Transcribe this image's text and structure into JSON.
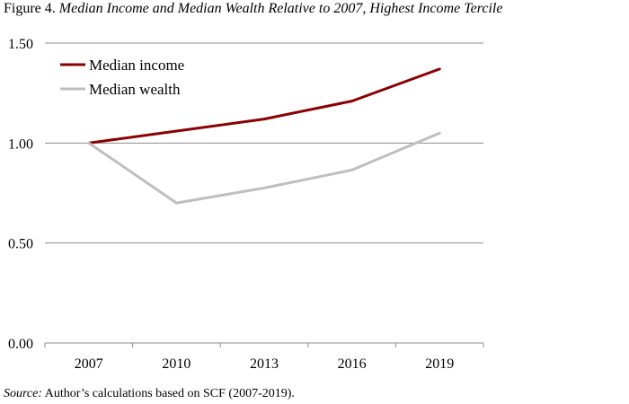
{
  "figure": {
    "label": "Figure 4. ",
    "title": "Median Income and Median Wealth Relative to 2007, Highest Income Tercile"
  },
  "source": {
    "label": "Source:",
    "text": " Author’s calculations based on SCF (2007-2019)."
  },
  "chart_data": {
    "type": "line",
    "title": "Median Income and Median Wealth Relative to 2007, Highest Income Tercile",
    "xlabel": "",
    "ylabel": "",
    "categories": [
      "2007",
      "2010",
      "2013",
      "2016",
      "2019"
    ],
    "ylim": [
      0,
      1.5
    ],
    "yticks": [
      0,
      0.5,
      1.0,
      1.5
    ],
    "ytick_labels": [
      "0.00",
      "0.50",
      "1.00",
      "1.50"
    ],
    "grid": "horizontal",
    "legend_position": "top-left",
    "series": [
      {
        "name": "Median income",
        "values": [
          1.0,
          1.06,
          1.12,
          1.21,
          1.37
        ],
        "color": "#8b0000"
      },
      {
        "name": "Median wealth",
        "values": [
          1.0,
          0.7,
          0.775,
          0.865,
          1.05
        ],
        "color": "#bfbfbf"
      }
    ]
  }
}
